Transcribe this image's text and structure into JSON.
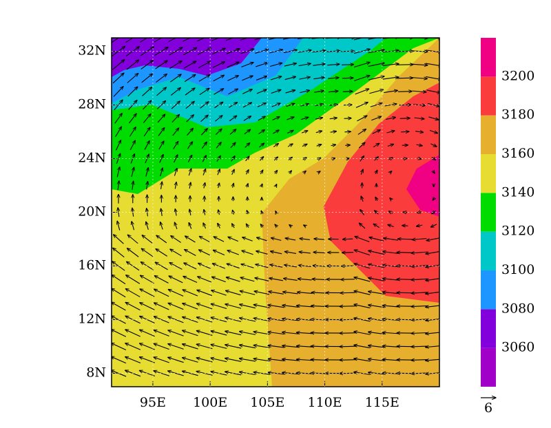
{
  "map": {
    "lon_ticks": [
      {
        "value": 95,
        "label": "95E"
      },
      {
        "value": 100,
        "label": "100E"
      },
      {
        "value": 105,
        "label": "105E"
      },
      {
        "value": 110,
        "label": "110E"
      },
      {
        "value": 115,
        "label": "115E"
      }
    ],
    "lat_ticks": [
      {
        "value": 8,
        "label": "8N"
      },
      {
        "value": 12,
        "label": "12N"
      },
      {
        "value": 16,
        "label": "16N"
      },
      {
        "value": 20,
        "label": "20N"
      },
      {
        "value": 24,
        "label": "24N"
      },
      {
        "value": 28,
        "label": "28N"
      },
      {
        "value": 32,
        "label": "32N"
      }
    ],
    "lon_range": [
      91.4,
      120
    ],
    "lat_range": [
      7,
      33
    ],
    "colorbar": {
      "levels": [
        3060,
        3080,
        3100,
        3120,
        3140,
        3160,
        3180,
        3200
      ],
      "colors": [
        "#a000c8",
        "#8200dc",
        "#1e96ff",
        "#00c8c8",
        "#00dc00",
        "#e6dc32",
        "#e6af2d",
        "#fa3c3c",
        "#f00082"
      ]
    },
    "reference_vector": "6"
  }
}
